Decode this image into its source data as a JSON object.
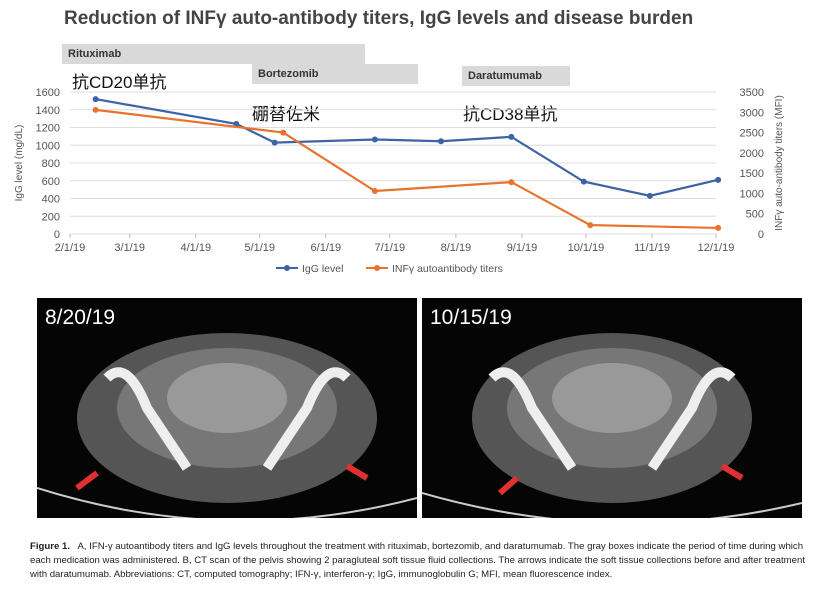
{
  "title": "Reduction of INFγ auto-antibody titers, IgG levels and disease burden",
  "drugs": [
    {
      "label": "Rituximab",
      "note": "抗CD20单抗"
    },
    {
      "label": "Bortezomib",
      "note": "硼替佐米"
    },
    {
      "label": "Daratumumab",
      "note": "抗CD38单抗"
    }
  ],
  "chart_data": {
    "type": "line",
    "title": "Reduction of INFγ auto-antibody titers, IgG levels and disease burden",
    "ylabel": "IgG level (mg/dL)",
    "y2label": "INFγ auto-antibody titers (MFI)",
    "ylim": [
      0,
      1600
    ],
    "y2lim": [
      0,
      3500
    ],
    "yticks": [
      "0",
      "200",
      "400",
      "600",
      "800",
      "1000",
      "1200",
      "1400",
      "1600"
    ],
    "y2ticks": [
      "0",
      "500",
      "1000",
      "1500",
      "2000",
      "2500",
      "3000",
      "3500"
    ],
    "xticks": [
      "2/1/19",
      "3/1/19",
      "4/1/19",
      "5/1/19",
      "6/1/19",
      "7/1/19",
      "8/1/19",
      "9/1/19",
      "10/1/19",
      "11/1/19",
      "12/1/19"
    ],
    "grid": true,
    "legend": "bottom",
    "series": [
      {
        "name": "IgG level",
        "axis": "left",
        "color": "#3c63a6",
        "x": [
          "2019-02-13",
          "2019-04-20",
          "2019-05-08",
          "2019-06-24",
          "2019-07-25",
          "2019-08-27",
          "2019-09-30",
          "2019-10-31",
          "2019-12-02"
        ],
        "values": [
          1520,
          1240,
          1030,
          1065,
          1045,
          1095,
          590,
          430,
          610
        ]
      },
      {
        "name": "INFγ autoantibody titers",
        "axis": "right",
        "color": "#e8732f",
        "x": [
          "2019-02-13",
          "2019-05-12",
          "2019-06-24",
          "2019-08-27",
          "2019-10-03",
          "2019-12-02"
        ],
        "values": [
          3060,
          2500,
          1060,
          1280,
          220,
          150
        ]
      }
    ]
  },
  "scans": [
    {
      "date": "8/20/19"
    },
    {
      "date": "10/15/19"
    }
  ],
  "caption": {
    "label": "Figure 1.",
    "text": "A, IFN-γ autoantibody titers and IgG levels throughout the treatment with rituximab, bortezomib, and daratumumab. The gray boxes indicate the period of time during which each medication was administered. B, CT scan of the pelvis showing 2 paragluteal soft tissue fluid collections. The arrows indicate the soft tissue collections before and after treatment with daratumumab. Abbreviations: CT, computed tomography; IFN-γ, interferon-γ; IgG, immunoglobulin G; MFI, mean fluorescence index."
  }
}
